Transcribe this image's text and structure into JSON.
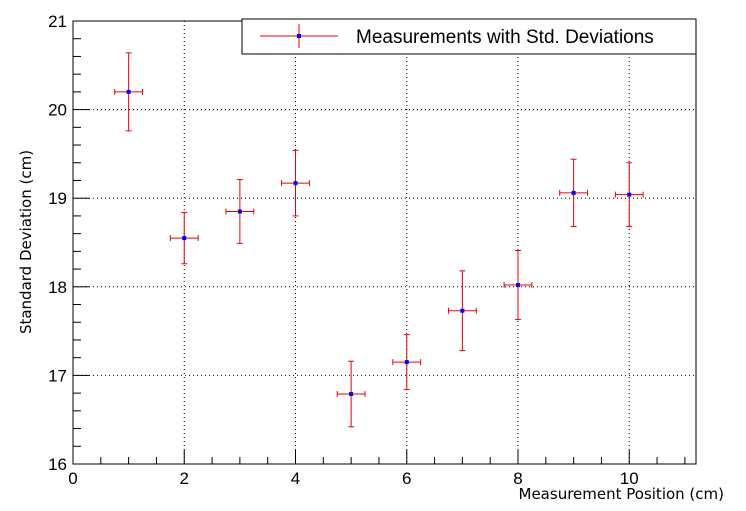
{
  "chart_data": {
    "type": "scatter",
    "title": "",
    "xlabel": "Measurement Position (cm)",
    "ylabel": "Standard Deviation (cm)",
    "xlim": [
      0,
      11.2
    ],
    "ylim": [
      16,
      21
    ],
    "x_ticks": [
      0,
      2,
      4,
      6,
      8,
      10
    ],
    "y_ticks": [
      16,
      17,
      18,
      19,
      20,
      21
    ],
    "grid": true,
    "legend_position": "top-right",
    "series": [
      {
        "name": "Measurements with Std. Deviations",
        "marker_color": "#0000ff",
        "error_color": "#e8000b",
        "x": [
          1,
          2,
          3,
          4,
          5,
          6,
          7,
          8,
          9,
          10
        ],
        "y": [
          20.2,
          18.55,
          18.85,
          19.17,
          16.79,
          17.15,
          17.73,
          18.02,
          19.06,
          19.04
        ],
        "x_err": [
          0.25,
          0.25,
          0.25,
          0.25,
          0.25,
          0.25,
          0.25,
          0.25,
          0.25,
          0.25
        ],
        "y_err": [
          0.44,
          0.29,
          0.36,
          0.37,
          0.37,
          0.31,
          0.45,
          0.39,
          0.38,
          0.36
        ]
      }
    ]
  }
}
